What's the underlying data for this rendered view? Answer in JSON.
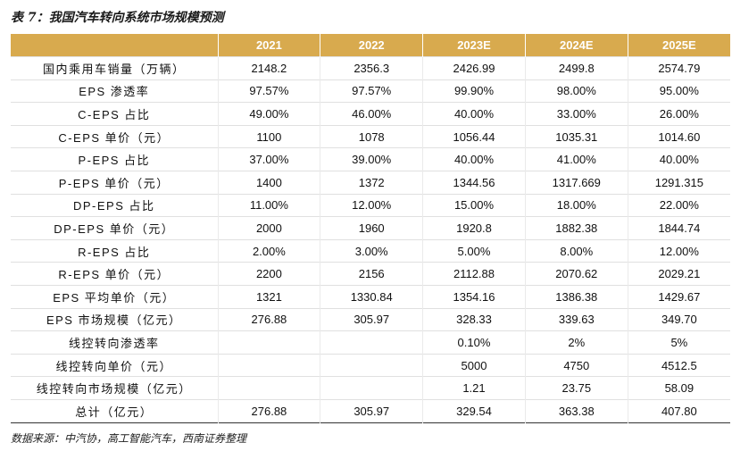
{
  "title": "表 7：我国汽车转向系统市场规模预测",
  "columns": [
    "",
    "2021",
    "2022",
    "2023E",
    "2024E",
    "2025E"
  ],
  "rows": [
    [
      "国内乘用车销量（万辆）",
      "2148.2",
      "2356.3",
      "2426.99",
      "2499.8",
      "2574.79"
    ],
    [
      "EPS 渗透率",
      "97.57%",
      "97.57%",
      "99.90%",
      "98.00%",
      "95.00%"
    ],
    [
      "C-EPS 占比",
      "49.00%",
      "46.00%",
      "40.00%",
      "33.00%",
      "26.00%"
    ],
    [
      "C-EPS 单价（元）",
      "1100",
      "1078",
      "1056.44",
      "1035.31",
      "1014.60"
    ],
    [
      "P-EPS 占比",
      "37.00%",
      "39.00%",
      "40.00%",
      "41.00%",
      "40.00%"
    ],
    [
      "P-EPS 单价（元）",
      "1400",
      "1372",
      "1344.56",
      "1317.669",
      "1291.315"
    ],
    [
      "DP-EPS 占比",
      "11.00%",
      "12.00%",
      "15.00%",
      "18.00%",
      "22.00%"
    ],
    [
      "DP-EPS 单价（元）",
      "2000",
      "1960",
      "1920.8",
      "1882.38",
      "1844.74"
    ],
    [
      "R-EPS 占比",
      "2.00%",
      "3.00%",
      "5.00%",
      "8.00%",
      "12.00%"
    ],
    [
      "R-EPS 单价（元）",
      "2200",
      "2156",
      "2112.88",
      "2070.62",
      "2029.21"
    ],
    [
      "EPS 平均单价（元）",
      "1321",
      "1330.84",
      "1354.16",
      "1386.38",
      "1429.67"
    ],
    [
      "EPS 市场规模（亿元）",
      "276.88",
      "305.97",
      "328.33",
      "339.63",
      "349.70"
    ],
    [
      "线控转向渗透率",
      "",
      "",
      "0.10%",
      "2%",
      "5%"
    ],
    [
      "线控转向单价（元）",
      "",
      "",
      "5000",
      "4750",
      "4512.5"
    ],
    [
      "线控转向市场规模（亿元）",
      "",
      "",
      "1.21",
      "23.75",
      "58.09"
    ],
    [
      "总计（亿元）",
      "276.88",
      "305.97",
      "329.54",
      "363.38",
      "407.80"
    ]
  ],
  "source": "数据来源：中汽协，高工智能汽车，西南证券整理",
  "colors": {
    "header_bg": "#d8aa4e",
    "header_text": "#ffffff"
  }
}
